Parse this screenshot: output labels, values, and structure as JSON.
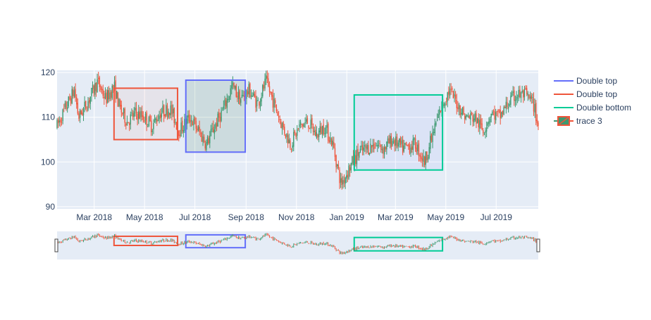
{
  "chart_data": {
    "type": "candlestick",
    "colors": {
      "increasing": "#3d9970",
      "decreasing": "#ef553b",
      "plot_bg": "#e5ecf6",
      "grid": "#ffffff",
      "text": "#2a3f5f"
    },
    "x_range": [
      "2018-01-15",
      "2019-08-21"
    ],
    "y_range": [
      89.5,
      120.5
    ],
    "y_ticks": [
      {
        "value": 90,
        "label": "90"
      },
      {
        "value": 100,
        "label": "100"
      },
      {
        "value": 110,
        "label": "110"
      },
      {
        "value": 120,
        "label": "120"
      }
    ],
    "x_ticks": [
      {
        "date": "2018-03-01",
        "label": "Mar 2018"
      },
      {
        "date": "2018-05-01",
        "label": "May 2018"
      },
      {
        "date": "2018-07-01",
        "label": "Jul 2018"
      },
      {
        "date": "2018-09-01",
        "label": "Sep 2018"
      },
      {
        "date": "2018-11-01",
        "label": "Nov 2018"
      },
      {
        "date": "2019-01-01",
        "label": "Jan 2019"
      },
      {
        "date": "2019-03-01",
        "label": "Mar 2019"
      },
      {
        "date": "2019-05-01",
        "label": "May 2019"
      },
      {
        "date": "2019-07-01",
        "label": "Jul 2019"
      }
    ],
    "price_path": [
      [
        "2018-01-15",
        108
      ],
      [
        "2018-01-25",
        112
      ],
      [
        "2018-02-05",
        116
      ],
      [
        "2018-02-10",
        110
      ],
      [
        "2018-02-20",
        113
      ],
      [
        "2018-03-05",
        118
      ],
      [
        "2018-03-15",
        114
      ],
      [
        "2018-03-25",
        117
      ],
      [
        "2018-04-01",
        112
      ],
      [
        "2018-04-10",
        109
      ],
      [
        "2018-04-20",
        111
      ],
      [
        "2018-05-01",
        110
      ],
      [
        "2018-05-10",
        108
      ],
      [
        "2018-05-20",
        111
      ],
      [
        "2018-06-01",
        112
      ],
      [
        "2018-06-12",
        107
      ],
      [
        "2018-06-25",
        110
      ],
      [
        "2018-07-05",
        107
      ],
      [
        "2018-07-15",
        104
      ],
      [
        "2018-07-25",
        108
      ],
      [
        "2018-08-05",
        112
      ],
      [
        "2018-08-15",
        117
      ],
      [
        "2018-08-25",
        114
      ],
      [
        "2018-09-05",
        116
      ],
      [
        "2018-09-15",
        113
      ],
      [
        "2018-09-25",
        118
      ],
      [
        "2018-10-05",
        113
      ],
      [
        "2018-10-15",
        108
      ],
      [
        "2018-10-25",
        104
      ],
      [
        "2018-11-05",
        108
      ],
      [
        "2018-11-15",
        109
      ],
      [
        "2018-11-25",
        106
      ],
      [
        "2018-12-05",
        108
      ],
      [
        "2018-12-15",
        104
      ],
      [
        "2018-12-25",
        95
      ],
      [
        "2019-01-05",
        99
      ],
      [
        "2019-01-15",
        102
      ],
      [
        "2019-01-25",
        103
      ],
      [
        "2019-02-05",
        104
      ],
      [
        "2019-02-15",
        103
      ],
      [
        "2019-02-25",
        105
      ],
      [
        "2019-03-10",
        103
      ],
      [
        "2019-03-25",
        104
      ],
      [
        "2019-04-05",
        100
      ],
      [
        "2019-04-15",
        106
      ],
      [
        "2019-04-25",
        112
      ],
      [
        "2019-05-05",
        116
      ],
      [
        "2019-05-15",
        113
      ],
      [
        "2019-05-25",
        110
      ],
      [
        "2019-06-05",
        110
      ],
      [
        "2019-06-15",
        107
      ],
      [
        "2019-06-25",
        111
      ],
      [
        "2019-07-05",
        110
      ],
      [
        "2019-07-15",
        113
      ],
      [
        "2019-07-25",
        115
      ],
      [
        "2019-08-05",
        115
      ],
      [
        "2019-08-15",
        113
      ],
      [
        "2019-08-21",
        108
      ]
    ],
    "candle_count": 420,
    "shapes": [
      {
        "name": "Double top",
        "x0": "2018-03-25",
        "x1": "2018-06-10",
        "y0": 105,
        "y1": 116.5,
        "line": "#ef553b",
        "fill": "rgba(239,85,59,0.06)"
      },
      {
        "name": "Double top",
        "x0": "2018-06-20",
        "x1": "2018-08-31",
        "y0": 102.2,
        "y1": 118.3,
        "line": "#636efa",
        "fill": "rgba(60,120,80,0.14)"
      },
      {
        "name": "Double bottom",
        "x0": "2019-01-10",
        "x1": "2019-04-27",
        "y0": 98.2,
        "y1": 115.0,
        "line": "#00cc96",
        "fill": "rgba(99,110,250,0.07)"
      }
    ],
    "legend": {
      "placement": "top-right",
      "items": [
        {
          "label": "Double top",
          "kind": "line",
          "color": "#636efa"
        },
        {
          "label": "Double top",
          "kind": "line",
          "color": "#ef553b"
        },
        {
          "label": "Double bottom",
          "kind": "line",
          "color": "#00cc96"
        },
        {
          "label": "trace 3",
          "kind": "candle",
          "color": "#3d9970",
          "color2": "#ef553b"
        }
      ]
    },
    "rangeslider": true
  }
}
